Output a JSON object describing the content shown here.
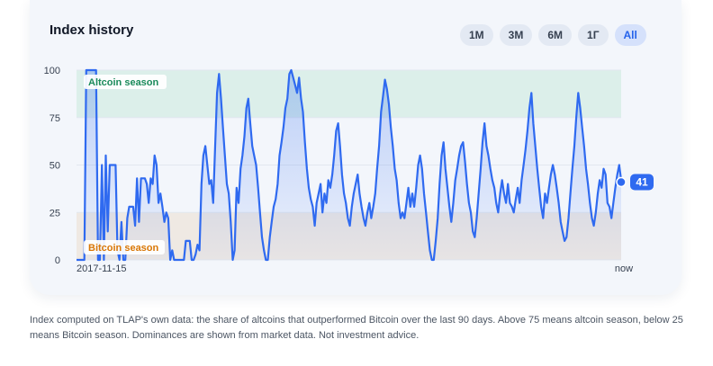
{
  "card": {
    "title": "Index history",
    "ranges": [
      "1M",
      "3M",
      "6M",
      "1Г",
      "All"
    ],
    "active_range": "All"
  },
  "colors": {
    "line": "#2f6af0",
    "altcoin_zone": "#dcefea",
    "bitcoin_zone": "#efe9e3",
    "altcoin_label": "#1a8a5a",
    "bitcoin_label": "#d97706",
    "badge": "#2f6af0"
  },
  "chart_data": {
    "type": "area",
    "title": "",
    "xlabel": "",
    "ylabel": "",
    "ylim": [
      0,
      100
    ],
    "yticks": [
      "0",
      "25",
      "50",
      "75",
      "100"
    ],
    "x_start_label": "2017-11-15",
    "x_end_label": "now",
    "zones": [
      {
        "label": "Altcoin season",
        "from": 75,
        "to": 100
      },
      {
        "label": "Bitcoin season",
        "from": 0,
        "to": 25
      }
    ],
    "current_value": 41,
    "grid": true,
    "series": [
      {
        "values": [
          0,
          0,
          0,
          0,
          0,
          100,
          100,
          100,
          100,
          100,
          100,
          0,
          0,
          50,
          0,
          55,
          15,
          50,
          50,
          50,
          50,
          5,
          0,
          20,
          0,
          0,
          22,
          28,
          28,
          28,
          18,
          43,
          20,
          43,
          43,
          43,
          40,
          30,
          43,
          40,
          55,
          50,
          30,
          35,
          28,
          20,
          25,
          22,
          0,
          5,
          0,
          0,
          0,
          0,
          0,
          0,
          10,
          10,
          10,
          0,
          0,
          3,
          8,
          5,
          40,
          55,
          60,
          50,
          40,
          42,
          30,
          60,
          88,
          98,
          85,
          70,
          55,
          40,
          35,
          20,
          0,
          5,
          38,
          30,
          48,
          55,
          65,
          80,
          85,
          72,
          60,
          55,
          50,
          38,
          25,
          12,
          5,
          0,
          0,
          12,
          20,
          28,
          32,
          40,
          55,
          62,
          70,
          80,
          85,
          98,
          100,
          96,
          92,
          88,
          96,
          85,
          78,
          62,
          48,
          38,
          32,
          28,
          18,
          30,
          35,
          40,
          25,
          35,
          30,
          42,
          38,
          45,
          55,
          68,
          72,
          60,
          45,
          35,
          30,
          22,
          18,
          28,
          35,
          40,
          45,
          35,
          28,
          22,
          18,
          25,
          30,
          22,
          28,
          35,
          48,
          60,
          78,
          86,
          95,
          90,
          82,
          70,
          60,
          48,
          42,
          30,
          22,
          25,
          22,
          30,
          38,
          28,
          35,
          28,
          38,
          50,
          55,
          48,
          35,
          25,
          15,
          5,
          0,
          0,
          10,
          22,
          40,
          55,
          62,
          48,
          38,
          28,
          20,
          30,
          42,
          48,
          55,
          60,
          62,
          52,
          40,
          30,
          25,
          15,
          12,
          22,
          35,
          48,
          62,
          72,
          60,
          55,
          48,
          42,
          38,
          30,
          25,
          35,
          42,
          35,
          30,
          40,
          30,
          28,
          25,
          32,
          38,
          30,
          42,
          50,
          58,
          68,
          80,
          88,
          72,
          60,
          48,
          38,
          28,
          22,
          35,
          30,
          38,
          45,
          50,
          45,
          38,
          30,
          20,
          15,
          10,
          12,
          22,
          35,
          48,
          60,
          75,
          88,
          80,
          70,
          60,
          48,
          40,
          30,
          22,
          18,
          25,
          35,
          42,
          38,
          48,
          45,
          30,
          28,
          22,
          30,
          38,
          45,
          50,
          42
        ]
      }
    ]
  },
  "footnote": "Index computed on TLAP's own data: the share of altcoins that outperformed Bitcoin over the last 90 days. Above 75 means altcoin season, below 25 means Bitcoin season. Dominances are shown from market data. Not investment advice."
}
